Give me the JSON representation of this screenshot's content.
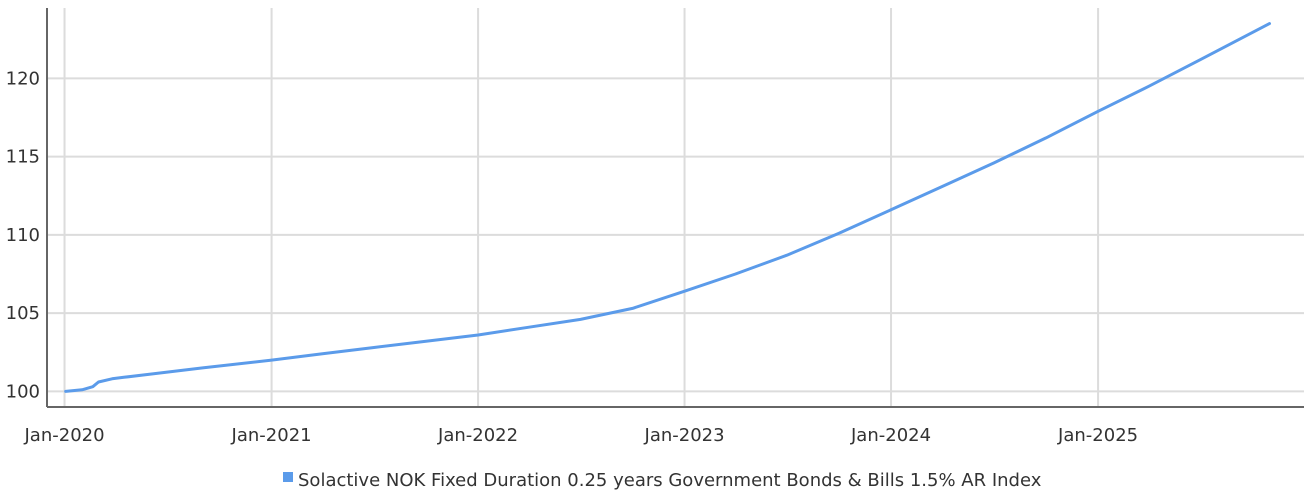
{
  "chart_data": {
    "type": "line",
    "x_type": "date",
    "xlim": [
      "2019-12-01",
      "2025-12-31"
    ],
    "ylim": [
      99,
      124.5
    ],
    "x_ticks": [
      "2020-01-01",
      "2021-01-01",
      "2022-01-01",
      "2023-01-01",
      "2024-01-01",
      "2025-01-01"
    ],
    "x_tick_labels": [
      "Jan-2020",
      "Jan-2021",
      "Jan-2022",
      "Jan-2023",
      "Jan-2024",
      "Jan-2025"
    ],
    "y_ticks": [
      100,
      105,
      110,
      115,
      120
    ],
    "y_tick_labels": [
      "100",
      "105",
      "110",
      "115",
      "120"
    ],
    "grid": true,
    "legend_position": "bottom-center",
    "series": [
      {
        "name": "Solactive NOK Fixed Duration 0.25 years Government Bonds & Bills 1.5% AR Index",
        "color": "#5b9bea",
        "x": [
          "2020-01-03",
          "2020-02-01",
          "2020-02-20",
          "2020-03-01",
          "2020-03-25",
          "2020-04-15",
          "2020-06-01",
          "2020-09-01",
          "2021-01-01",
          "2021-04-01",
          "2021-07-01",
          "2021-10-01",
          "2022-01-01",
          "2022-04-01",
          "2022-07-01",
          "2022-10-01",
          "2023-01-01",
          "2023-04-01",
          "2023-07-01",
          "2023-10-01",
          "2024-01-01",
          "2024-04-01",
          "2024-07-01",
          "2024-10-01",
          "2025-01-01",
          "2025-04-01",
          "2025-07-01",
          "2025-10-31"
        ],
        "values": [
          100.0,
          100.1,
          100.3,
          100.6,
          100.8,
          100.9,
          101.1,
          101.5,
          102.0,
          102.4,
          102.8,
          103.2,
          103.6,
          104.1,
          104.6,
          105.3,
          106.4,
          107.5,
          108.7,
          110.1,
          111.6,
          113.1,
          114.6,
          116.2,
          117.9,
          119.5,
          121.2,
          123.5
        ]
      }
    ]
  },
  "colors": {
    "grid": "#dcdcdc",
    "axis": "#666666",
    "text": "#333333"
  }
}
